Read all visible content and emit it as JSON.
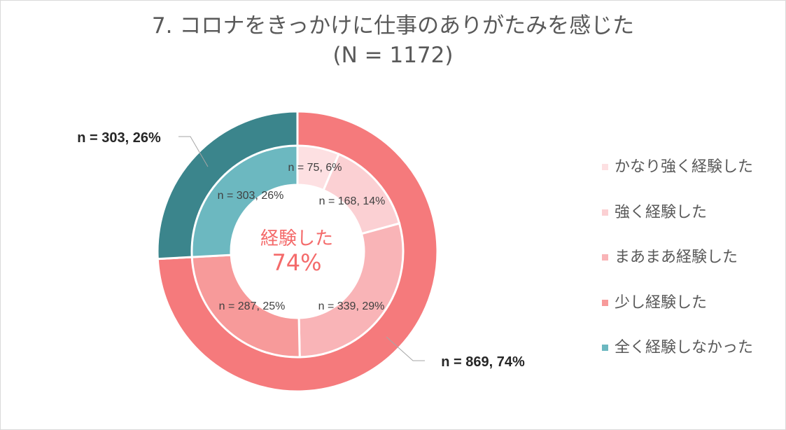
{
  "title": {
    "line1": "7. コロナをきっかけに仕事のありがたみを感じた",
    "line2": "(N = 1172)"
  },
  "chart_data": {
    "type": "pie",
    "subtype": "double-donut",
    "title": "7. コロナをきっかけに仕事のありがたみを感じた (N = 1172)",
    "total": 1172,
    "center_label": {
      "line1": "経験した",
      "line2": "74%"
    },
    "inner_ring": [
      {
        "name": "かなり強く経験した",
        "n": 75,
        "pct": 6,
        "label": "n = 75, 6%",
        "color": "#fde0e2"
      },
      {
        "name": "強く経験した",
        "n": 168,
        "pct": 14,
        "label": "n = 168, 14%",
        "color": "#fbd0d3"
      },
      {
        "name": "まあまあ経験した",
        "n": 339,
        "pct": 29,
        "label": "n = 339, 29%",
        "color": "#f9b4b7"
      },
      {
        "name": "少し経験した",
        "n": 287,
        "pct": 25,
        "label": "n = 287, 25%",
        "color": "#f79a9a"
      },
      {
        "name": "全く経験しなかった",
        "n": 303,
        "pct": 26,
        "label": "n = 303, 26%",
        "color": "#6cb8c0"
      }
    ],
    "outer_ring": [
      {
        "name": "経験した",
        "n": 869,
        "pct": 74,
        "label": "n = 869, 74%",
        "color": "#f57a7c"
      },
      {
        "name": "全く経験しなかった",
        "n": 303,
        "pct": 26,
        "label": "n = 303, 26%",
        "color": "#3b858c"
      }
    ],
    "legend": [
      {
        "label": "かなり強く経験した",
        "color": "#fde0e2"
      },
      {
        "label": "強く経験した",
        "color": "#fbd0d3"
      },
      {
        "label": "まあまあ経験した",
        "color": "#f9b4b7"
      },
      {
        "label": "少し経験した",
        "color": "#f79a9a"
      },
      {
        "label": "全く経験しなかった",
        "color": "#6cb8c0"
      }
    ],
    "legend_position": "right"
  }
}
